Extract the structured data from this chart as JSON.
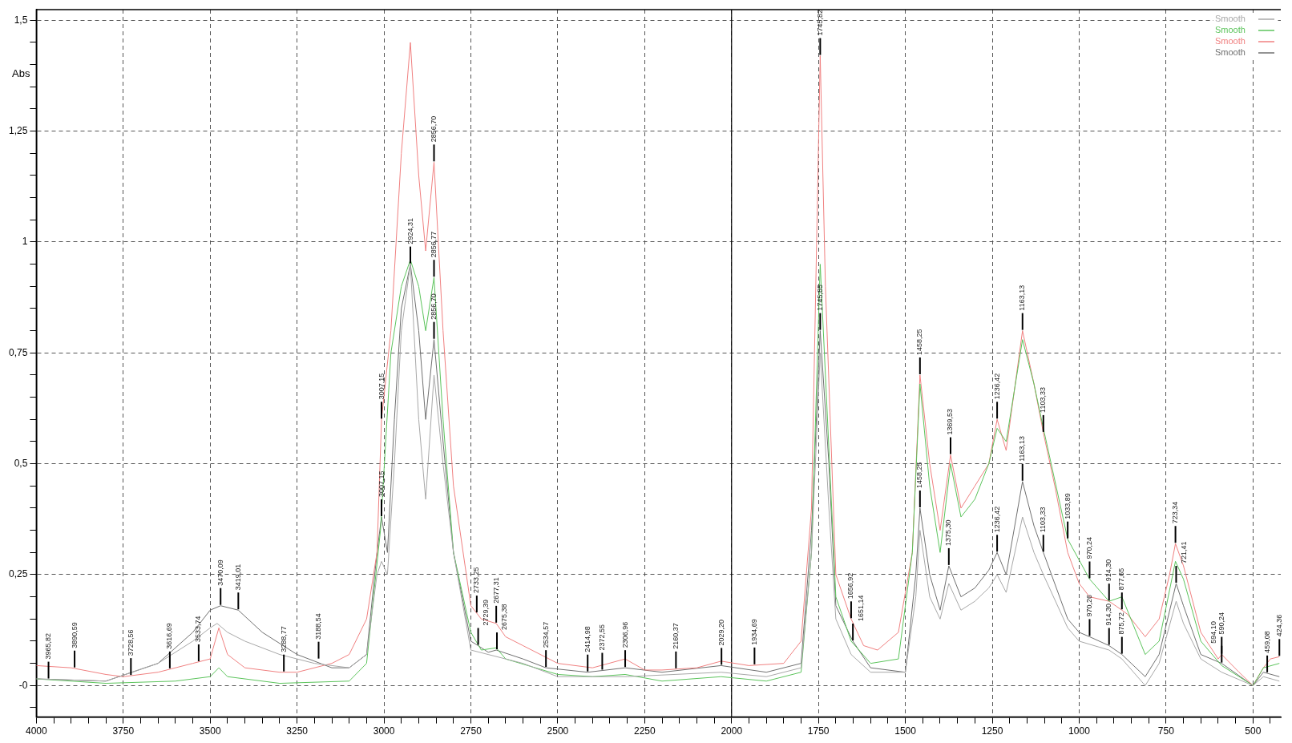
{
  "chart_data": {
    "type": "line",
    "ylabel": "Abs",
    "xlim": [
      4000,
      420
    ],
    "ylim": [
      -0.071,
      1.524
    ],
    "xticks": [
      4000,
      {
        "value": 3950,
        "label": null
      },
      {
        "value": 3900,
        "label": null
      },
      {
        "value": 3850,
        "label": null
      },
      {
        "value": 3800,
        "label": null
      },
      3750,
      {
        "value": 3700,
        "label": null
      },
      {
        "value": 3650,
        "label": null
      },
      {
        "value": 3600,
        "label": null
      },
      {
        "value": 3550,
        "label": null
      },
      3500,
      {
        "value": 3450,
        "label": null
      },
      {
        "value": 3400,
        "label": null
      },
      {
        "value": 3350,
        "label": null
      },
      {
        "value": 3300,
        "label": null
      },
      3250,
      {
        "value": 3200,
        "label": null
      },
      {
        "value": 3150,
        "label": null
      },
      {
        "value": 3100,
        "label": null
      },
      {
        "value": 3050,
        "label": null
      },
      3000,
      {
        "value": 2950,
        "label": null
      },
      {
        "value": 2900,
        "label": null
      },
      {
        "value": 2850,
        "label": null
      },
      {
        "value": 2800,
        "label": null
      },
      2750,
      {
        "value": 2700,
        "label": null
      },
      {
        "value": 2650,
        "label": null
      },
      {
        "value": 2600,
        "label": null
      },
      {
        "value": 2550,
        "label": null
      },
      2500,
      {
        "value": 2450,
        "label": null
      },
      {
        "value": 2400,
        "label": null
      },
      {
        "value": 2350,
        "label": null
      },
      {
        "value": 2300,
        "label": null
      },
      2250,
      {
        "value": 2200,
        "label": null
      },
      {
        "value": 2150,
        "label": null
      },
      {
        "value": 2100,
        "label": null
      },
      {
        "value": 2050,
        "label": null
      },
      2000,
      {
        "value": 1950,
        "label": null
      },
      {
        "value": 1900,
        "label": null
      },
      {
        "value": 1850,
        "label": null
      },
      {
        "value": 1800,
        "label": null
      },
      1750,
      {
        "value": 1700,
        "label": null
      },
      {
        "value": 1650,
        "label": null
      },
      {
        "value": 1600,
        "label": null
      },
      {
        "value": 1550,
        "label": null
      },
      1500,
      {
        "value": 1450,
        "label": null
      },
      {
        "value": 1400,
        "label": null
      },
      {
        "value": 1350,
        "label": null
      },
      {
        "value": 1300,
        "label": null
      },
      1250,
      {
        "value": 1200,
        "label": null
      },
      {
        "value": 1150,
        "label": null
      },
      {
        "value": 1100,
        "label": null
      },
      {
        "value": 1050,
        "label": null
      },
      1000,
      {
        "value": 950,
        "label": null
      },
      {
        "value": 900,
        "label": null
      },
      {
        "value": 850,
        "label": null
      },
      {
        "value": 800,
        "label": null
      },
      750,
      {
        "value": 700,
        "label": null
      },
      {
        "value": 650,
        "label": null
      },
      {
        "value": 600,
        "label": null
      },
      {
        "value": 550,
        "label": null
      },
      500,
      {
        "value": 450,
        "label": null
      }
    ],
    "yticks": [
      {
        "value": -0.05,
        "label": null
      },
      {
        "value": 0,
        "label": "-0"
      },
      {
        "value": 0.05,
        "label": null
      },
      {
        "value": 0.1,
        "label": null
      },
      {
        "value": 0.15,
        "label": null
      },
      {
        "value": 0.2,
        "label": null
      },
      {
        "value": 0.25,
        "label": "0,25"
      },
      {
        "value": 0.3,
        "label": null
      },
      {
        "value": 0.35,
        "label": null
      },
      {
        "value": 0.4,
        "label": null
      },
      {
        "value": 0.45,
        "label": null
      },
      {
        "value": 0.5,
        "label": "0,5"
      },
      {
        "value": 0.55,
        "label": null
      },
      {
        "value": 0.6,
        "label": null
      },
      {
        "value": 0.65,
        "label": null
      },
      {
        "value": 0.7,
        "label": null
      },
      {
        "value": 0.75,
        "label": "0,75"
      },
      {
        "value": 0.8,
        "label": null
      },
      {
        "value": 0.85,
        "label": null
      },
      {
        "value": 0.9,
        "label": null
      },
      {
        "value": 0.95,
        "label": null
      },
      {
        "value": 1,
        "label": "1"
      },
      {
        "value": 1.05,
        "label": null
      },
      {
        "value": 1.1,
        "label": null
      },
      {
        "value": 1.15,
        "label": null
      },
      {
        "value": 1.2,
        "label": null
      },
      {
        "value": 1.25,
        "label": "1,25"
      },
      {
        "value": 1.3,
        "label": null
      },
      {
        "value": 1.35,
        "label": null
      },
      {
        "value": 1.4,
        "label": null
      },
      {
        "value": 1.45,
        "label": null
      },
      {
        "value": 1.5,
        "label": "1,5"
      }
    ],
    "grid": true,
    "legend": "top right",
    "line_style": "solid",
    "marker": "none",
    "ref_lines": [
      {
        "axis": "x",
        "value": 2000,
        "color": "#000000",
        "line_style": "solid"
      }
    ],
    "series": [
      {
        "name": "Smooth",
        "color": "#a8a8a8",
        "x": [
          4000,
          3800,
          3650,
          3550,
          3500,
          3480,
          3450,
          3400,
          3300,
          3200,
          3100,
          3050,
          3020,
          3007,
          2990,
          2970,
          2950,
          2924,
          2900,
          2880,
          2856,
          2830,
          2800,
          2750,
          2700,
          2600,
          2500,
          2300,
          2030,
          1900,
          1800,
          1770,
          1745,
          1720,
          1700,
          1656,
          1600,
          1500,
          1470,
          1458,
          1430,
          1400,
          1375,
          1340,
          1300,
          1260,
          1236,
          1210,
          1163,
          1130,
          1103,
          1033,
          1000,
          914,
          877,
          810,
          770,
          721,
          700,
          650,
          590,
          500,
          470,
          424
        ],
        "values": [
          0.015,
          0.01,
          0.05,
          0.1,
          0.13,
          0.14,
          0.12,
          0.1,
          0.07,
          0.05,
          0.04,
          0.07,
          0.25,
          0.28,
          0.25,
          0.5,
          0.8,
          0.95,
          0.6,
          0.42,
          0.7,
          0.5,
          0.3,
          0.08,
          0.07,
          0.05,
          0.02,
          0.02,
          0.03,
          0.02,
          0.04,
          0.3,
          0.75,
          0.4,
          0.15,
          0.07,
          0.03,
          0.03,
          0.2,
          0.35,
          0.2,
          0.15,
          0.23,
          0.17,
          0.19,
          0.22,
          0.25,
          0.21,
          0.38,
          0.3,
          0.25,
          0.13,
          0.1,
          0.08,
          0.06,
          0.0,
          0.05,
          0.19,
          0.14,
          0.06,
          0.03,
          0.0,
          0.02,
          0.01
        ]
      },
      {
        "name": "Smooth",
        "color": "#5cc45c",
        "x": [
          4000,
          3800,
          3600,
          3500,
          3475,
          3450,
          3300,
          3100,
          3050,
          3010,
          2980,
          2950,
          2924,
          2900,
          2880,
          2856,
          2830,
          2800,
          2750,
          2720,
          2677,
          2650,
          2500,
          2400,
          2306,
          2200,
          2030,
          1900,
          1800,
          1770,
          1745,
          1730,
          1700,
          1656,
          1600,
          1520,
          1480,
          1458,
          1430,
          1400,
          1370,
          1340,
          1300,
          1260,
          1236,
          1210,
          1163,
          1130,
          1103,
          1033,
          970,
          914,
          877,
          810,
          770,
          723,
          700,
          650,
          590,
          500,
          470,
          424
        ],
        "values": [
          0.015,
          0.005,
          0.01,
          0.02,
          0.04,
          0.02,
          0.005,
          0.01,
          0.05,
          0.35,
          0.75,
          0.9,
          0.96,
          0.9,
          0.8,
          0.92,
          0.6,
          0.3,
          0.12,
          0.08,
          0.085,
          0.06,
          0.025,
          0.02,
          0.025,
          0.01,
          0.02,
          0.01,
          0.03,
          0.3,
          0.95,
          0.7,
          0.2,
          0.1,
          0.05,
          0.06,
          0.3,
          0.68,
          0.45,
          0.3,
          0.5,
          0.38,
          0.42,
          0.5,
          0.58,
          0.55,
          0.78,
          0.68,
          0.58,
          0.33,
          0.24,
          0.19,
          0.2,
          0.07,
          0.1,
          0.28,
          0.24,
          0.1,
          0.045,
          0.0,
          0.04,
          0.05
        ]
      },
      {
        "name": "Smooth",
        "color": "#f08080",
        "x": [
          4000,
          3900,
          3800,
          3750,
          3650,
          3550,
          3500,
          3475,
          3450,
          3400,
          3300,
          3250,
          3150,
          3100,
          3050,
          3020,
          3007,
          2980,
          2950,
          2924,
          2900,
          2880,
          2856,
          2830,
          2800,
          2750,
          2720,
          2677,
          2650,
          2600,
          2500,
          2400,
          2306,
          2250,
          2200,
          2100,
          2030,
          1950,
          1850,
          1800,
          1770,
          1745,
          1730,
          1700,
          1656,
          1620,
          1580,
          1520,
          1480,
          1458,
          1430,
          1400,
          1370,
          1340,
          1300,
          1260,
          1236,
          1210,
          1163,
          1130,
          1103,
          1070,
          1033,
          1000,
          970,
          914,
          877,
          860,
          810,
          770,
          740,
          723,
          700,
          650,
          600,
          590,
          540,
          500,
          470,
          450,
          424
        ],
        "values": [
          0.045,
          0.04,
          0.025,
          0.02,
          0.03,
          0.05,
          0.06,
          0.13,
          0.07,
          0.04,
          0.03,
          0.03,
          0.05,
          0.07,
          0.15,
          0.3,
          0.6,
          0.8,
          1.2,
          1.45,
          1.15,
          0.98,
          1.18,
          0.8,
          0.45,
          0.18,
          0.15,
          0.14,
          0.11,
          0.09,
          0.05,
          0.04,
          0.06,
          0.035,
          0.035,
          0.04,
          0.055,
          0.045,
          0.05,
          0.1,
          0.4,
          1.42,
          0.9,
          0.25,
          0.15,
          0.09,
          0.08,
          0.12,
          0.3,
          0.7,
          0.5,
          0.35,
          0.52,
          0.4,
          0.45,
          0.5,
          0.6,
          0.53,
          0.8,
          0.68,
          0.57,
          0.45,
          0.3,
          0.23,
          0.2,
          0.19,
          0.17,
          0.16,
          0.11,
          0.15,
          0.25,
          0.32,
          0.27,
          0.12,
          0.06,
          0.07,
          0.03,
          0.0,
          0.04,
          0.06,
          0.065
        ]
      },
      {
        "name": "Smooth",
        "color": "#707070",
        "x": [
          4000,
          3800,
          3650,
          3550,
          3500,
          3470,
          3419,
          3350,
          3250,
          3150,
          3100,
          3050,
          3020,
          3007,
          2990,
          2970,
          2950,
          2924,
          2900,
          2880,
          2856,
          2830,
          2800,
          2750,
          2729,
          2700,
          2677,
          2600,
          2534,
          2414,
          2306,
          2200,
          2030,
          1900,
          1800,
          1770,
          1745,
          1720,
          1700,
          1651,
          1600,
          1500,
          1470,
          1458,
          1430,
          1400,
          1375,
          1340,
          1300,
          1260,
          1236,
          1210,
          1163,
          1130,
          1103,
          1033,
          1000,
          970,
          914,
          877,
          810,
          770,
          721,
          700,
          650,
          590,
          500,
          470,
          424
        ],
        "values": [
          0.015,
          0.01,
          0.05,
          0.12,
          0.17,
          0.18,
          0.17,
          0.12,
          0.07,
          0.04,
          0.04,
          0.07,
          0.3,
          0.38,
          0.3,
          0.6,
          0.85,
          0.95,
          0.8,
          0.6,
          0.78,
          0.55,
          0.3,
          0.1,
          0.09,
          0.075,
          0.08,
          0.06,
          0.04,
          0.03,
          0.04,
          0.03,
          0.045,
          0.03,
          0.05,
          0.35,
          0.8,
          0.5,
          0.18,
          0.1,
          0.04,
          0.03,
          0.25,
          0.4,
          0.25,
          0.17,
          0.27,
          0.2,
          0.22,
          0.26,
          0.3,
          0.25,
          0.46,
          0.36,
          0.3,
          0.15,
          0.12,
          0.11,
          0.09,
          0.07,
          0.02,
          0.07,
          0.23,
          0.18,
          0.07,
          0.05,
          0.0,
          0.03,
          0.02
        ]
      }
    ],
    "annotations": [
      {
        "text": "3965,82",
        "x": 3965,
        "y": 0.014
      },
      {
        "text": "3890,59",
        "x": 3890,
        "y": 0.039
      },
      {
        "text": "3728,56",
        "x": 3728,
        "y": 0.022
      },
      {
        "text": "3616,69",
        "x": 3616,
        "y": 0.037
      },
      {
        "text": "3533,74",
        "x": 3533,
        "y": 0.053
      },
      {
        "text": "3470,09",
        "x": 3470,
        "y": 0.18
      },
      {
        "text": "3419,01",
        "x": 3419,
        "y": 0.17
      },
      {
        "text": "3288,77",
        "x": 3288,
        "y": 0.03
      },
      {
        "text": "3188,54",
        "x": 3188,
        "y": 0.059
      },
      {
        "text": "3007,15",
        "x": 3007,
        "y": 0.6
      },
      {
        "text": "3007,15",
        "x": 3007,
        "y": 0.38
      },
      {
        "text": "2924,31",
        "x": 2924,
        "y": 0.95
      },
      {
        "text": "2856,70",
        "x": 2856,
        "y": 1.18
      },
      {
        "text": "2856,77",
        "x": 2856,
        "y": 0.92
      },
      {
        "text": "2856,70",
        "x": 2856,
        "y": 0.78
      },
      {
        "text": "2733,25",
        "x": 2733,
        "y": 0.163
      },
      {
        "text": "2729,39",
        "x": 2729,
        "y": 0.09
      },
      {
        "text": "2677,31",
        "x": 2677,
        "y": 0.14
      },
      {
        "text": "2675,38",
        "x": 2675,
        "y": 0.08
      },
      {
        "text": "2534,57",
        "x": 2534,
        "y": 0.04
      },
      {
        "text": "2414,98",
        "x": 2414,
        "y": 0.03
      },
      {
        "text": "2372,55",
        "x": 2372,
        "y": 0.034
      },
      {
        "text": "2306,96",
        "x": 2306,
        "y": 0.04
      },
      {
        "text": "2160,37",
        "x": 2160,
        "y": 0.037
      },
      {
        "text": "2029,20",
        "x": 2029,
        "y": 0.045
      },
      {
        "text": "1934,69",
        "x": 1934,
        "y": 0.046
      },
      {
        "text": "1745,82",
        "x": 1745,
        "y": 1.42
      },
      {
        "text": "1745,85",
        "x": 1745,
        "y": 0.8
      },
      {
        "text": "1656,92",
        "x": 1656,
        "y": 0.15
      },
      {
        "text": "1651,14",
        "x": 1651,
        "y": 0.1
      },
      {
        "text": "1458,25",
        "x": 1458,
        "y": 0.7
      },
      {
        "text": "1458,25",
        "x": 1458,
        "y": 0.4
      },
      {
        "text": "1369,53",
        "x": 1370,
        "y": 0.52
      },
      {
        "text": "1375,30",
        "x": 1375,
        "y": 0.27
      },
      {
        "text": "1236,42",
        "x": 1236,
        "y": 0.6
      },
      {
        "text": "1236,42",
        "x": 1236,
        "y": 0.3
      },
      {
        "text": "1163,13",
        "x": 1163,
        "y": 0.8
      },
      {
        "text": "1163,13",
        "x": 1163,
        "y": 0.46
      },
      {
        "text": "1103,33",
        "x": 1103,
        "y": 0.57
      },
      {
        "text": "1103,33",
        "x": 1103,
        "y": 0.3
      },
      {
        "text": "1033,89",
        "x": 1033,
        "y": 0.33
      },
      {
        "text": "970,24",
        "x": 970,
        "y": 0.24
      },
      {
        "text": "970,26",
        "x": 970,
        "y": 0.11
      },
      {
        "text": "914,30",
        "x": 914,
        "y": 0.09
      },
      {
        "text": "914,30",
        "x": 914,
        "y": 0.19
      },
      {
        "text": "877,65",
        "x": 877,
        "y": 0.17
      },
      {
        "text": "875,72",
        "x": 877,
        "y": 0.07
      },
      {
        "text": "723,34",
        "x": 723,
        "y": 0.32
      },
      {
        "text": "721,41",
        "x": 721,
        "y": 0.23
      },
      {
        "text": "590,24",
        "x": 590,
        "y": 0.07
      },
      {
        "text": "594,10",
        "x": 590,
        "y": 0.05
      },
      {
        "text": "459,08",
        "x": 459,
        "y": 0.028
      },
      {
        "text": "424,36",
        "x": 424,
        "y": 0.065
      }
    ]
  }
}
